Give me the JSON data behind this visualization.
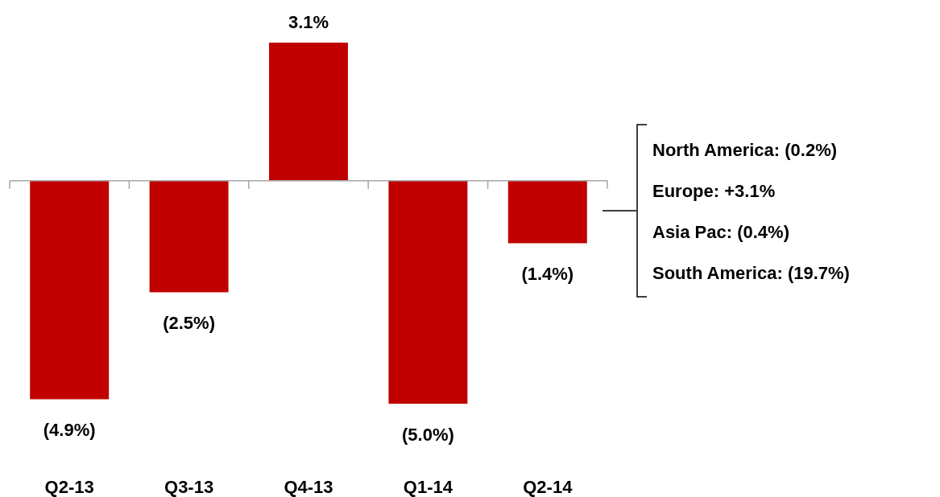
{
  "chart_data": {
    "type": "bar",
    "categories": [
      "Q2-13",
      "Q3-13",
      "Q4-13",
      "Q1-14",
      "Q2-14"
    ],
    "values": [
      -4.9,
      -2.5,
      3.1,
      -5.0,
      -1.4
    ],
    "value_labels": [
      "(4.9%)",
      "(2.5%)",
      "3.1%",
      "(5.0%)",
      "(1.4%)"
    ],
    "color": "#c00000",
    "annotations": [
      "North America: (0.2%)",
      "Europe: +3.1%",
      "Asia Pac: (0.4%)",
      "South America: (19.7%)"
    ]
  }
}
